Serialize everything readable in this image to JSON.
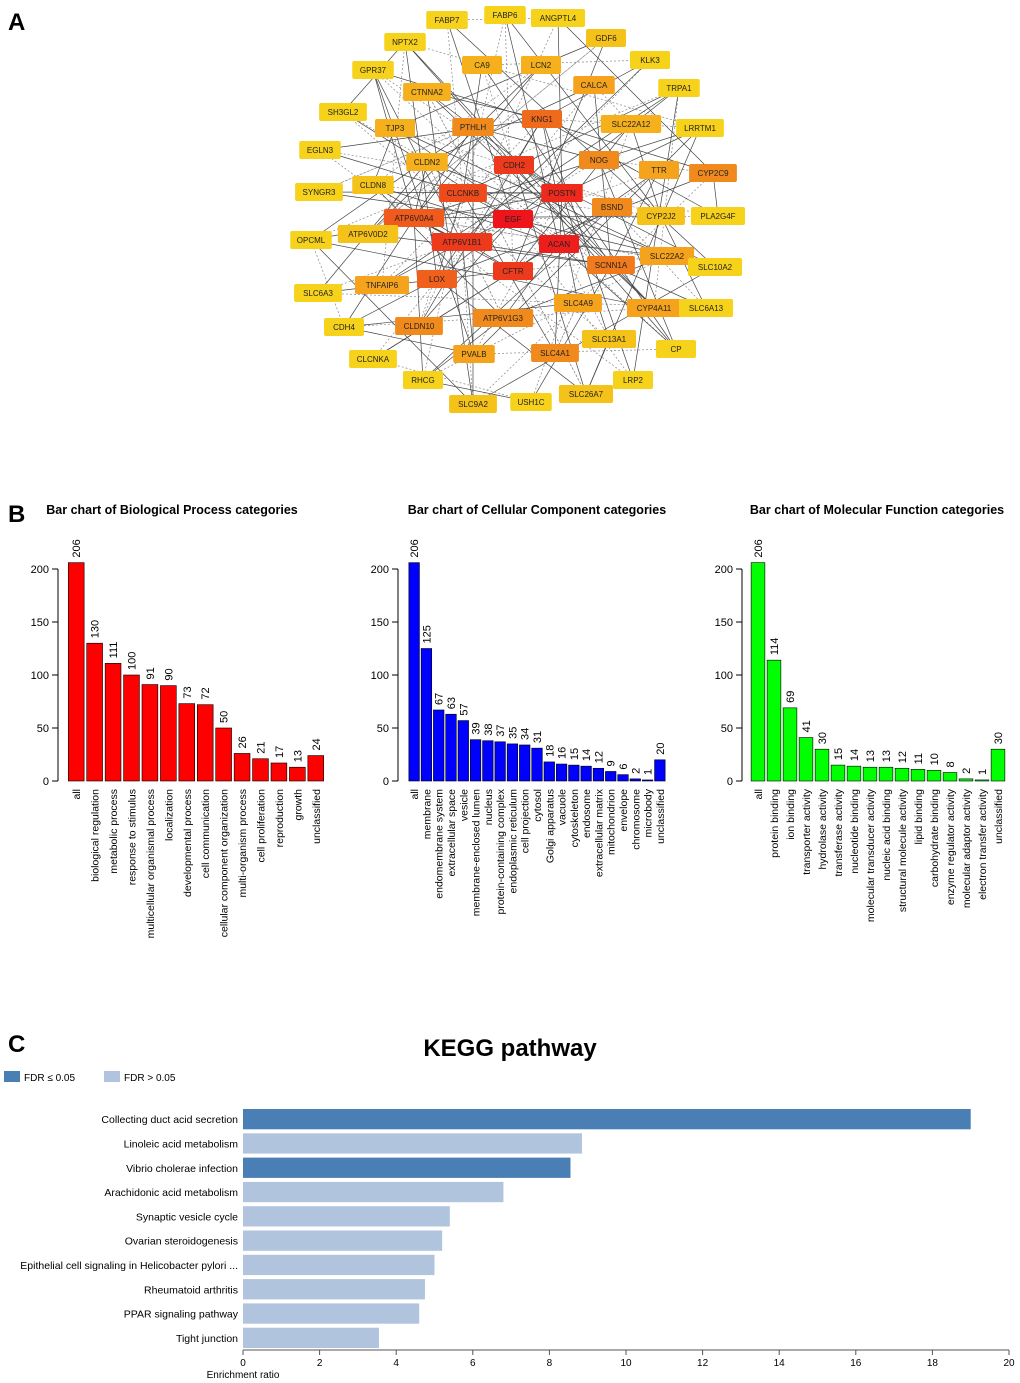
{
  "panel_labels": [
    "A",
    "B",
    "C"
  ],
  "chart_data": [
    {
      "type": "network",
      "nodes": [
        {
          "label": "FABP7",
          "color": "#f7d21b"
        },
        {
          "label": "FABP6",
          "color": "#f7d21b"
        },
        {
          "label": "ANGPTL4",
          "color": "#f7d21b"
        },
        {
          "label": "NPTX2",
          "color": "#f7d21b"
        },
        {
          "label": "GDF6",
          "color": "#f5c21a"
        },
        {
          "label": "GPR37",
          "color": "#f7d21b"
        },
        {
          "label": "CA9",
          "color": "#f5b01c"
        },
        {
          "label": "LCN2",
          "color": "#f5b01c"
        },
        {
          "label": "KLK3",
          "color": "#f7d21b"
        },
        {
          "label": "CTNNA2",
          "color": "#f5b01c"
        },
        {
          "label": "CALCA",
          "color": "#f5a21c"
        },
        {
          "label": "TRPA1",
          "color": "#f7d21b"
        },
        {
          "label": "SH3GL2",
          "color": "#f7d21b"
        },
        {
          "label": "TJP3",
          "color": "#f5b01c"
        },
        {
          "label": "PTHLH",
          "color": "#f08a1c"
        },
        {
          "label": "KNG1",
          "color": "#f06a1c"
        },
        {
          "label": "SLC22A12",
          "color": "#f5b01c"
        },
        {
          "label": "LRRTM1",
          "color": "#f7d21b"
        },
        {
          "label": "EGLN3",
          "color": "#f7d21b"
        },
        {
          "label": "CLDN2",
          "color": "#f5b01c"
        },
        {
          "label": "CDH2",
          "color": "#ee3a1c"
        },
        {
          "label": "NOG",
          "color": "#f08a1c"
        },
        {
          "label": "TTR",
          "color": "#f5a21c"
        },
        {
          "label": "CYP2C9",
          "color": "#f08a1c"
        },
        {
          "label": "SYNGR3",
          "color": "#f7d21b"
        },
        {
          "label": "CLDN8",
          "color": "#f5c21a"
        },
        {
          "label": "CLCNKB",
          "color": "#ee4a1c"
        },
        {
          "label": "POSTN",
          "color": "#ee2a1c"
        },
        {
          "label": "BSND",
          "color": "#f08a1c"
        },
        {
          "label": "ATP6V0A4",
          "color": "#f05a1c"
        },
        {
          "label": "EGF",
          "color": "#ee141c"
        },
        {
          "label": "CYP2J2",
          "color": "#f5c21a"
        },
        {
          "label": "PLA2G4F",
          "color": "#f7d21b"
        },
        {
          "label": "OPCML",
          "color": "#f7d21b"
        },
        {
          "label": "ATP6V0D2",
          "color": "#f5c21a"
        },
        {
          "label": "ATP6V1B1",
          "color": "#ee3a1c"
        },
        {
          "label": "ACAN",
          "color": "#ee1e1c"
        },
        {
          "label": "SLC22A2",
          "color": "#f5a21c"
        },
        {
          "label": "SCNN1A",
          "color": "#f07a1c"
        },
        {
          "label": "SLC10A2",
          "color": "#f7d21b"
        },
        {
          "label": "SLC6A3",
          "color": "#f7d21b"
        },
        {
          "label": "TNFAIP6",
          "color": "#f5a21c"
        },
        {
          "label": "LOX",
          "color": "#f0601c"
        },
        {
          "label": "CFTR",
          "color": "#ee3a1c"
        },
        {
          "label": "SLC4A9",
          "color": "#f5a21c"
        },
        {
          "label": "CYP4A11",
          "color": "#f5a21c"
        },
        {
          "label": "SLC6A13",
          "color": "#f7d21b"
        },
        {
          "label": "CDH4",
          "color": "#f7d21b"
        },
        {
          "label": "CLDN10",
          "color": "#f08a1c"
        },
        {
          "label": "ATP6V1G3",
          "color": "#f08a1c"
        },
        {
          "label": "SLC13A1",
          "color": "#f5c21a"
        },
        {
          "label": "CP",
          "color": "#f7d21b"
        },
        {
          "label": "CLCNKA",
          "color": "#f7d21b"
        },
        {
          "label": "PVALB",
          "color": "#f5a21c"
        },
        {
          "label": "SLC4A1",
          "color": "#f08a1c"
        },
        {
          "label": "RHCG",
          "color": "#f7d21b"
        },
        {
          "label": "LRP2",
          "color": "#f7d21b"
        },
        {
          "label": "SLC9A2",
          "color": "#f5c21a"
        },
        {
          "label": "USH1C",
          "color": "#f7d21b"
        },
        {
          "label": "SLC26A7",
          "color": "#f5c21a"
        }
      ]
    },
    {
      "type": "bar",
      "title": "Bar chart of Biological Process categories",
      "color": "#ff0000",
      "categories": [
        "all",
        "biological regulation",
        "metabolic process",
        "response to stimulus",
        "multicellular organismal process",
        "localization",
        "developmental process",
        "cell communication",
        "cellular component organization",
        "multi-organism process",
        "cell proliferation",
        "reproduction",
        "growth",
        "unclassified"
      ],
      "values": [
        206,
        130,
        111,
        100,
        91,
        90,
        73,
        72,
        50,
        26,
        21,
        17,
        13,
        24
      ],
      "ylim": [
        0,
        200
      ],
      "yticks": [
        0,
        50,
        100,
        150,
        200
      ]
    },
    {
      "type": "bar",
      "title": "Bar chart of Cellular Component categories",
      "color": "#0000ff",
      "categories": [
        "all",
        "membrane",
        "endomembrane system",
        "extracellular space",
        "vesicle",
        "membrane-enclosed lumen",
        "nucleus",
        "protein-containing complex",
        "endoplasmic reticulum",
        "cell projection",
        "cytosol",
        "Golgi apparatus",
        "vacuole",
        "cytoskeleton",
        "endosome",
        "extracellular matrix",
        "mitochondrion",
        "envelope",
        "chromosome",
        "microbody",
        "unclassified"
      ],
      "values": [
        206,
        125,
        67,
        63,
        57,
        39,
        38,
        37,
        35,
        34,
        31,
        18,
        16,
        15,
        14,
        12,
        9,
        6,
        2,
        1,
        20
      ],
      "ylim": [
        0,
        200
      ],
      "yticks": [
        0,
        50,
        100,
        150,
        200
      ]
    },
    {
      "type": "bar",
      "title": "Bar chart of Molecular Function categories",
      "color": "#00ff00",
      "categories": [
        "all",
        "protein binding",
        "ion binding",
        "transporter activity",
        "hydrolase activity",
        "transferase activity",
        "nucleotide binding",
        "molecular transducer activity",
        "nucleic acid binding",
        "structural molecule activity",
        "lipid binding",
        "carbohydrate binding",
        "enzyme regulator activity",
        "molecular adaptor activity",
        "electron transfer activity",
        "unclassified"
      ],
      "values": [
        206,
        114,
        69,
        41,
        30,
        15,
        14,
        13,
        13,
        12,
        11,
        10,
        8,
        2,
        1,
        30
      ],
      "ylim": [
        0,
        200
      ],
      "yticks": [
        0,
        50,
        100,
        150,
        200
      ]
    },
    {
      "type": "hbar",
      "title": "KEGG pathway",
      "xlabel": "Enrichment ratio",
      "categories": [
        "Collecting duct acid secretion",
        "Linoleic acid metabolism",
        "Vibrio cholerae infection",
        "Arachidonic acid metabolism",
        "Synaptic vesicle cycle",
        "Ovarian steroidogenesis",
        "Epithelial cell signaling in Helicobacter pylori ...",
        "Rheumatoid arthritis",
        "PPAR signaling pathway",
        "Tight junction"
      ],
      "series": [
        {
          "name": "FDR ≤ 0.05",
          "color": "#4a7fb5",
          "values": [
            19.0,
            null,
            8.55,
            null,
            null,
            null,
            null,
            null,
            null,
            null
          ]
        },
        {
          "name": "FDR > 0.05",
          "color": "#b0c4de",
          "values": [
            null,
            8.85,
            null,
            6.8,
            5.4,
            5.2,
            5.0,
            4.75,
            4.6,
            3.55
          ]
        }
      ],
      "xlim": [
        0,
        20
      ],
      "xticks": [
        0,
        2,
        4,
        6,
        8,
        10,
        12,
        14,
        16,
        18,
        20
      ]
    }
  ]
}
